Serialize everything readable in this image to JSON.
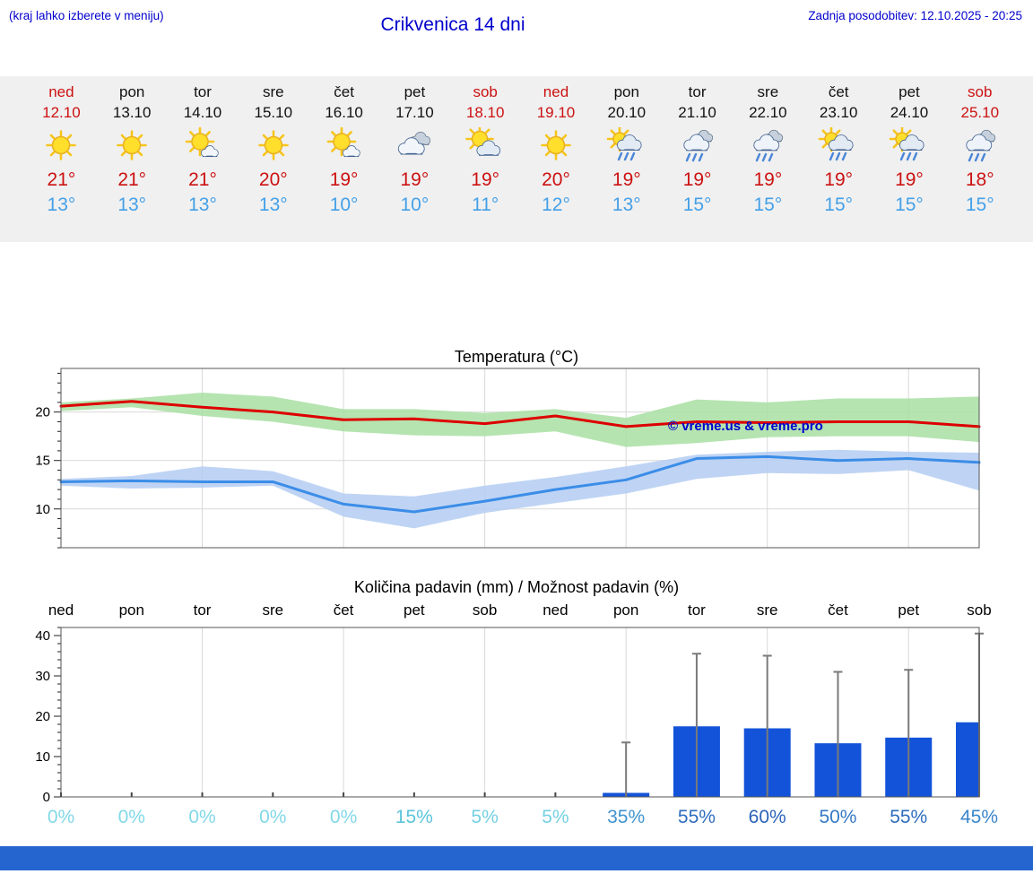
{
  "header": {
    "note": "(kraj lahko izberete v meniju)",
    "title": "Crikvenica 14 dni",
    "updated": "Zadnja posodobitev: 12.10.2025 - 20:25"
  },
  "colors": {
    "accent_blue": "#0000cc",
    "high_red": "#cc1111",
    "low_blue": "#44a0e8",
    "footer_blue": "#2565d0",
    "strip_bg": "#f0f0f0"
  },
  "forecast": {
    "days": [
      {
        "name": "ned",
        "date": "12.10",
        "weekend": true,
        "icon": "sun",
        "high": "21°",
        "low": "13°"
      },
      {
        "name": "pon",
        "date": "13.10",
        "weekend": false,
        "icon": "sun",
        "high": "21°",
        "low": "13°"
      },
      {
        "name": "tor",
        "date": "14.10",
        "weekend": false,
        "icon": "sun-small-cloud",
        "high": "21°",
        "low": "13°"
      },
      {
        "name": "sre",
        "date": "15.10",
        "weekend": false,
        "icon": "sun",
        "high": "20°",
        "low": "13°"
      },
      {
        "name": "čet",
        "date": "16.10",
        "weekend": false,
        "icon": "sun-small-cloud",
        "high": "19°",
        "low": "10°"
      },
      {
        "name": "pet",
        "date": "17.10",
        "weekend": false,
        "icon": "cloud",
        "high": "19°",
        "low": "10°"
      },
      {
        "name": "sob",
        "date": "18.10",
        "weekend": true,
        "icon": "sun-cloud",
        "high": "19°",
        "low": "11°"
      },
      {
        "name": "ned",
        "date": "19.10",
        "weekend": true,
        "icon": "sun",
        "high": "20°",
        "low": "12°"
      },
      {
        "name": "pon",
        "date": "20.10",
        "weekend": false,
        "icon": "sun-rain",
        "high": "19°",
        "low": "13°"
      },
      {
        "name": "tor",
        "date": "21.10",
        "weekend": false,
        "icon": "rain",
        "high": "19°",
        "low": "15°"
      },
      {
        "name": "sre",
        "date": "22.10",
        "weekend": false,
        "icon": "rain",
        "high": "19°",
        "low": "15°"
      },
      {
        "name": "čet",
        "date": "23.10",
        "weekend": false,
        "icon": "sun-rain",
        "high": "19°",
        "low": "15°"
      },
      {
        "name": "pet",
        "date": "24.10",
        "weekend": false,
        "icon": "sun-rain",
        "high": "19°",
        "low": "15°"
      },
      {
        "name": "sob",
        "date": "25.10",
        "weekend": true,
        "icon": "rain",
        "high": "18°",
        "low": "15°"
      }
    ]
  },
  "chart_data": [
    {
      "type": "line",
      "title": "Temperatura (°C)",
      "ylim": [
        6,
        24.5
      ],
      "yticks": [
        10,
        15,
        20
      ],
      "watermark": "© vreme.us & vreme.pro",
      "series": [
        {
          "name": "max temperature",
          "color": "#dd0000",
          "band_color": "#a8dfa2",
          "values": [
            20.6,
            21.1,
            20.5,
            20.0,
            19.2,
            19.3,
            18.8,
            19.6,
            18.5,
            19.0,
            18.9,
            19.0,
            19.0,
            18.5
          ],
          "band_upper": [
            21.0,
            21.4,
            22.0,
            21.6,
            20.3,
            20.3,
            19.9,
            20.3,
            19.4,
            21.3,
            21.0,
            21.4,
            21.4,
            21.6
          ],
          "band_lower": [
            20.1,
            20.5,
            19.6,
            19.0,
            18.0,
            17.6,
            17.5,
            18.0,
            16.4,
            16.8,
            17.4,
            17.5,
            17.5,
            16.9
          ]
        },
        {
          "name": "min temperature",
          "color": "#3b8de8",
          "band_color": "#b4ccf2",
          "values": [
            12.8,
            12.9,
            12.8,
            12.8,
            10.5,
            9.7,
            10.8,
            12.0,
            13.0,
            15.2,
            15.4,
            15.0,
            15.2,
            14.8
          ],
          "band_upper": [
            13.1,
            13.4,
            14.4,
            13.9,
            11.6,
            11.3,
            12.4,
            13.3,
            14.4,
            15.6,
            15.9,
            16.1,
            15.9,
            15.8
          ],
          "band_lower": [
            12.4,
            12.1,
            12.2,
            12.4,
            9.2,
            8.0,
            9.6,
            10.6,
            11.6,
            13.1,
            13.7,
            13.6,
            14.0,
            11.9
          ]
        }
      ]
    },
    {
      "type": "bar",
      "title": "Količina padavin (mm) / Možnost padavin (%)",
      "categories": [
        "ned",
        "pon",
        "tor",
        "sre",
        "čet",
        "pet",
        "sob",
        "ned",
        "pon",
        "tor",
        "sre",
        "čet",
        "pet",
        "sob"
      ],
      "values": [
        0,
        0,
        0,
        0,
        0,
        0,
        0,
        0,
        1.0,
        17.5,
        17.0,
        13.3,
        14.7,
        18.5
      ],
      "max_values": [
        0,
        0,
        0,
        0,
        0,
        0,
        0,
        0,
        13.5,
        35.5,
        35.0,
        31.0,
        31.5,
        40.5
      ],
      "bar_color": "#1353d9",
      "whisker_color": "#7a7a7a",
      "ylim": [
        0,
        42
      ],
      "yticks": [
        0,
        10,
        20,
        30,
        40
      ],
      "probabilities": [
        {
          "label": "0%",
          "color": "#82d8e8"
        },
        {
          "label": "0%",
          "color": "#82d8e8"
        },
        {
          "label": "0%",
          "color": "#82d8e8"
        },
        {
          "label": "0%",
          "color": "#82d8e8"
        },
        {
          "label": "0%",
          "color": "#82d8e8"
        },
        {
          "label": "15%",
          "color": "#5bc4da"
        },
        {
          "label": "5%",
          "color": "#74d0e2"
        },
        {
          "label": "5%",
          "color": "#74d0e2"
        },
        {
          "label": "35%",
          "color": "#3f93cf"
        },
        {
          "label": "55%",
          "color": "#2e6cbe"
        },
        {
          "label": "60%",
          "color": "#2a63b8"
        },
        {
          "label": "50%",
          "color": "#3579c4"
        },
        {
          "label": "55%",
          "color": "#2e6cbe"
        },
        {
          "label": "45%",
          "color": "#3a86ca"
        }
      ]
    }
  ]
}
